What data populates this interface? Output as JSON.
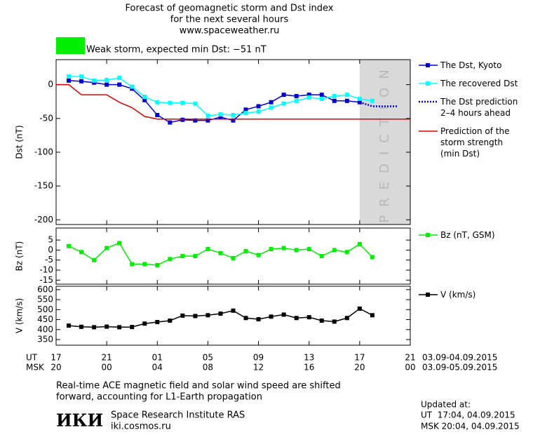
{
  "title": [
    "Forecast of geomagnetic storm and Dst index",
    "for the next several hours",
    "www.spaceweather.ru"
  ],
  "storm_color": "#00ee00",
  "storm_label": "Weak storm, expected min Dst: −51 nT",
  "prediction_label": "PREDICTION",
  "chart_data": [
    {
      "type": "line",
      "ylabel": "Dst (nT)",
      "xlim": [
        0,
        28
      ],
      "xticks": [
        0,
        4,
        8,
        12,
        16,
        20,
        24,
        28
      ],
      "ylim": [
        -207,
        37
      ],
      "yticks": [
        0,
        -50,
        -100,
        -150,
        -200
      ],
      "shade_from": 24,
      "shade_color": "#d9d9d9",
      "series": [
        {
          "name": "The Dst, Kyoto",
          "color": "#0000cc",
          "markers": true,
          "style": "solid",
          "x": [
            1,
            2,
            3,
            4,
            5,
            6,
            7,
            8,
            9,
            10,
            11,
            12,
            13,
            14,
            15,
            16,
            17,
            18,
            19,
            20,
            21,
            22,
            23,
            24
          ],
          "values": [
            6,
            5,
            3,
            0,
            0,
            -6,
            -23,
            -45,
            -56,
            -52,
            -53,
            -53,
            -48,
            -53,
            -37,
            -32,
            -26,
            -15,
            -17,
            -15,
            -15,
            -24,
            -24,
            -26
          ]
        },
        {
          "name": "The recovered Dst",
          "color": "#00ffff",
          "markers": true,
          "style": "solid",
          "x": [
            1,
            2,
            3,
            4,
            5,
            6,
            7,
            8,
            9,
            10,
            11,
            12,
            13,
            14,
            15,
            16,
            17,
            18,
            19,
            20,
            21,
            22,
            23,
            24,
            25
          ],
          "values": [
            12,
            12,
            6,
            7,
            10,
            -3,
            -18,
            -26,
            -27,
            -27,
            -28,
            -46,
            -44,
            -45,
            -42,
            -40,
            -34,
            -28,
            -24,
            -19,
            -21,
            -17,
            -15,
            -21,
            -24
          ]
        },
        {
          "name": "The Dst prediction\n2–4 hours ahead",
          "color": "#0000cc",
          "markers": false,
          "style": "dotted",
          "x": [
            24,
            25,
            27
          ],
          "values": [
            -26,
            -32,
            -32
          ]
        },
        {
          "name": "Prediction of the\nstorm strength\n(min Dst)",
          "color": "#dd0000",
          "markers": false,
          "style": "solid",
          "x": [
            0,
            1,
            2,
            4,
            5,
            6,
            7,
            8,
            28
          ],
          "values": [
            0,
            0,
            -15,
            -15,
            -26,
            -34,
            -47,
            -51,
            -51
          ]
        }
      ]
    },
    {
      "type": "line",
      "ylabel": "Bz (nT)",
      "xlim": [
        0,
        28
      ],
      "xticks": [
        0,
        4,
        8,
        12,
        16,
        20,
        24,
        28
      ],
      "ylim": [
        -17,
        11
      ],
      "yticks": [
        5,
        0,
        -5,
        -10,
        -15
      ],
      "series": [
        {
          "name": "Bz (nT, GSM)",
          "color": "#00ee00",
          "markers": true,
          "style": "solid",
          "x": [
            1,
            2,
            3,
            4,
            5,
            6,
            7,
            8,
            9,
            10,
            11,
            12,
            13,
            14,
            15,
            16,
            17,
            18,
            19,
            20,
            21,
            22,
            23,
            24,
            25
          ],
          "values": [
            2,
            -1,
            -5,
            1,
            3.5,
            -7,
            -7,
            -7.5,
            -4.5,
            -3,
            -3,
            0.5,
            -1.5,
            -4,
            -0.5,
            -2.5,
            0.5,
            1,
            0,
            0.5,
            -3,
            0,
            -1,
            3,
            -3.5
          ]
        }
      ]
    },
    {
      "type": "line",
      "ylabel": "V (km/s)",
      "xlim": [
        0,
        28
      ],
      "xticks": [
        {
          "value": 0,
          "label": "17"
        },
        {
          "value": 4,
          "label": "21"
        },
        {
          "value": 8,
          "label": "01"
        },
        {
          "value": 12,
          "label": "05"
        },
        {
          "value": 16,
          "label": "09"
        },
        {
          "value": 20,
          "label": "13"
        },
        {
          "value": 24,
          "label": "17"
        },
        {
          "value": 28,
          "label": "21"
        }
      ],
      "xticks_msk": [
        "20",
        "00",
        "04",
        "08",
        "12",
        "16",
        "20",
        "00"
      ],
      "ylim": [
        322,
        617
      ],
      "yticks": [
        350,
        400,
        450,
        500,
        550,
        600
      ],
      "series": [
        {
          "name": "V (km/s)",
          "color": "#000000",
          "markers": true,
          "style": "solid",
          "x": [
            1,
            2,
            3,
            4,
            5,
            6,
            7,
            8,
            9,
            10,
            11,
            12,
            13,
            14,
            15,
            16,
            17,
            18,
            19,
            20,
            21,
            22,
            23,
            24,
            25
          ],
          "values": [
            420,
            414,
            412,
            415,
            412,
            413,
            430,
            438,
            445,
            470,
            468,
            472,
            480,
            495,
            458,
            452,
            465,
            475,
            458,
            462,
            445,
            440,
            458,
            505,
            472
          ]
        }
      ]
    }
  ],
  "time_axis": {
    "ut_label": "UT",
    "msk_label": "MSK",
    "ut_dates": "03.09-04.09.2015",
    "msk_dates": "03.09-05.09.2015"
  },
  "notes": [
    "Real-time ACE magnetic field and solar wind speed are shifted",
    "forward, accounting for L1-Earth propagation"
  ],
  "logo": "ИКИ",
  "institute": "Space Research Institute RAS",
  "url": "iki.cosmos.ru",
  "updated": [
    "Updated at:",
    "UT  17:04, 04.09.2015",
    "MSK 20:04, 04.09.2015"
  ]
}
